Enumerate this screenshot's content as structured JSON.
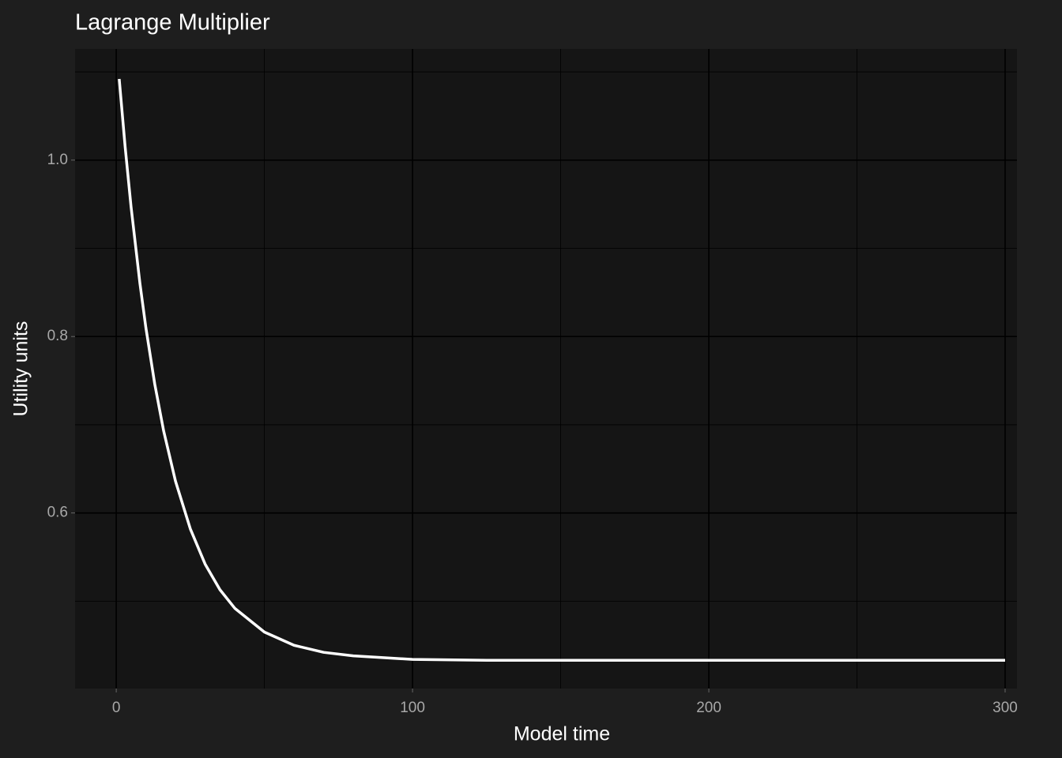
{
  "chart_data": {
    "type": "line",
    "title": "Lagrange Multiplier",
    "x_label": "Model time",
    "y_label": "Utility units",
    "x": [
      1,
      3,
      5,
      8,
      10,
      13,
      16,
      20,
      25,
      30,
      35,
      40,
      50,
      60,
      70,
      80,
      90,
      100,
      125,
      150,
      200,
      250,
      300
    ],
    "series": [
      {
        "color": "#ffffff",
        "values": [
          1.092,
          1.015,
          0.947,
          0.86,
          0.81,
          0.746,
          0.693,
          0.636,
          0.582,
          0.542,
          0.513,
          0.492,
          0.465,
          0.45,
          0.442,
          0.438,
          0.436,
          0.434,
          0.433,
          0.433,
          0.433,
          0.433,
          0.433
        ]
      }
    ],
    "xlim": [
      -13.9,
      304
    ],
    "xticks": [
      0,
      100,
      200,
      300
    ],
    "minor_xticks": [
      50,
      150,
      250
    ],
    "ylim": [
      0.401,
      1.126
    ],
    "yticks": [
      0.6,
      0.8,
      1.0
    ],
    "minor_yticks": [
      0.5,
      0.7,
      0.9,
      1.1
    ],
    "grid": true
  }
}
